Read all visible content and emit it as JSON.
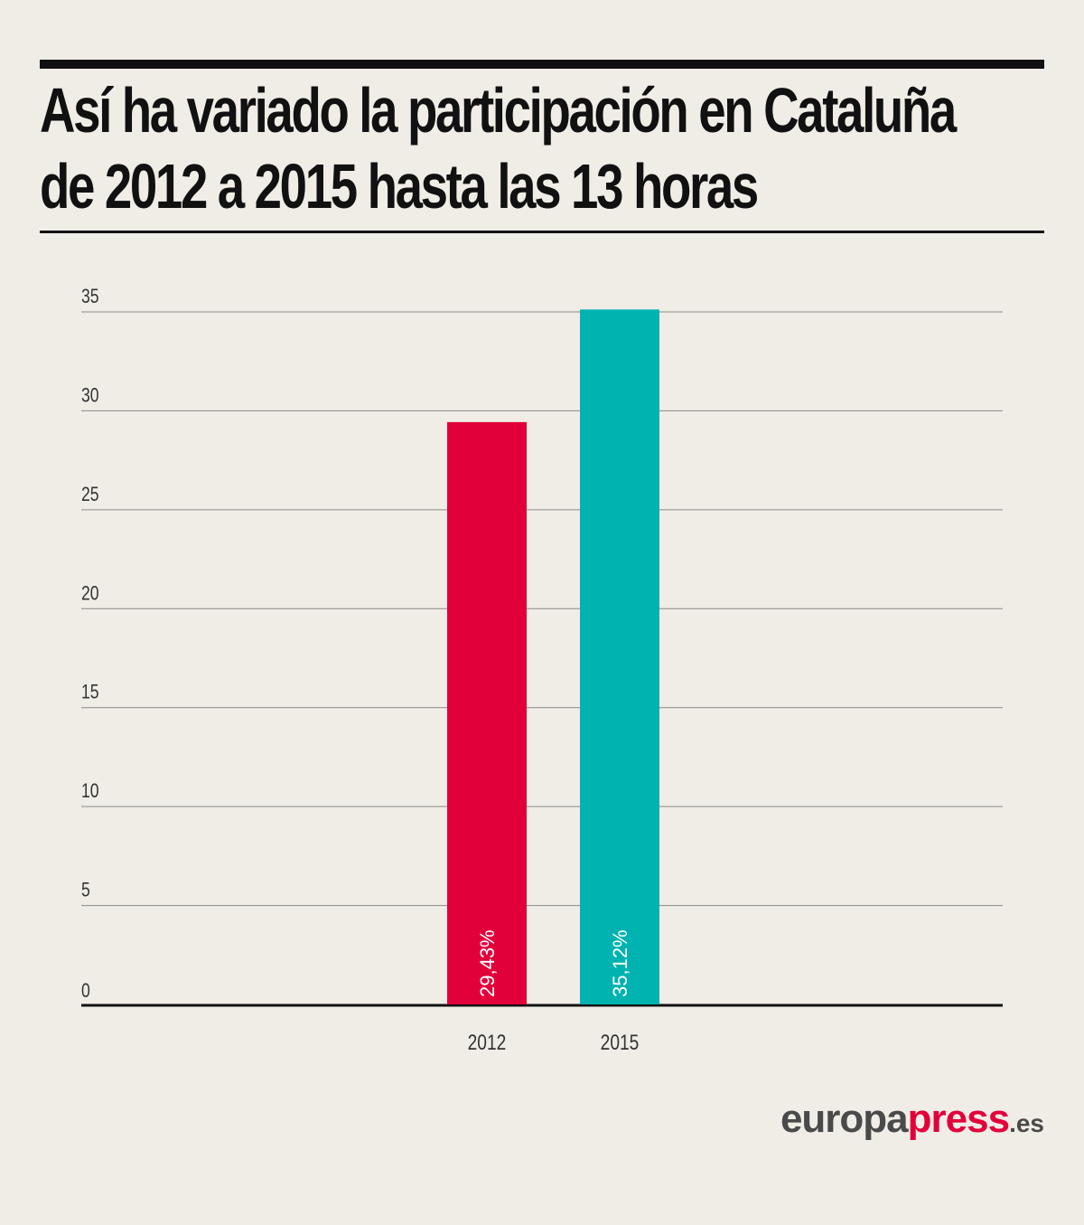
{
  "header": {
    "title_line1": "Así ha variado la participación en Cataluña",
    "title_line2": "de 2012 a 2015 hasta las 13 horas"
  },
  "chart_data": {
    "type": "bar",
    "categories": [
      "2012",
      "2015"
    ],
    "values": [
      29.43,
      35.12
    ],
    "data_labels": [
      "29,43%",
      "35,12%"
    ],
    "colors": [
      "#e2003b",
      "#00b3b0"
    ],
    "yticks": [
      "0",
      "5",
      "10",
      "15",
      "20",
      "25",
      "30",
      "35"
    ],
    "ylim": [
      0,
      35
    ],
    "grid": true,
    "legend": "none"
  },
  "branding": {
    "europa": "europa",
    "press": "press",
    "tld": ".es"
  }
}
